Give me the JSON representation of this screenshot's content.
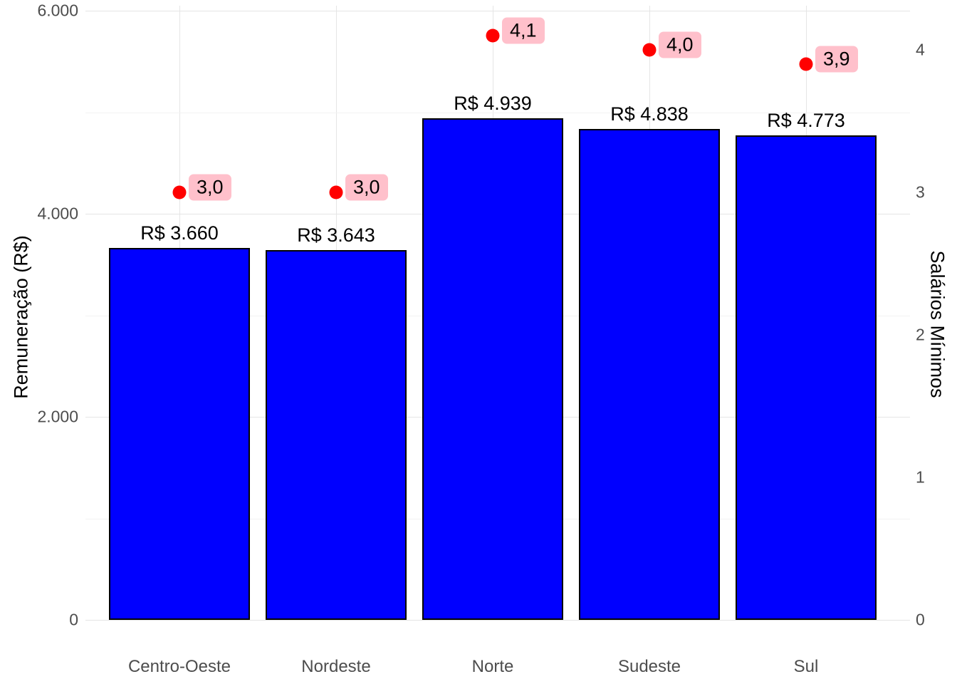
{
  "chart_data": {
    "type": "bar",
    "title": "",
    "categories": [
      "Centro-Oeste",
      "Nordeste",
      "Norte",
      "Sudeste",
      "Sul"
    ],
    "series": [
      {
        "name": "Remuneração (R$)",
        "type": "bar",
        "values": [
          3660,
          3643,
          4939,
          4838,
          4773
        ],
        "labels": [
          "R$ 3.660",
          "R$ 3.643",
          "R$ 4.939",
          "R$ 4.838",
          "R$ 4.773"
        ],
        "color": "#0000FF",
        "border_color": "#000000"
      },
      {
        "name": "Salários Mínimos",
        "type": "scatter",
        "values": [
          3.0,
          3.0,
          4.1,
          4.0,
          3.9
        ],
        "labels": [
          "3,0",
          "3,0",
          "4,1",
          "4,0",
          "3,9"
        ],
        "color": "#FF0000",
        "label_bg": "#FFC0CB"
      }
    ],
    "left_axis": {
      "label": "Remuneração (R$)",
      "ticks": [
        0,
        2000,
        4000,
        6000
      ],
      "tick_labels": [
        "0",
        "2.000",
        "4.000",
        "6.000"
      ],
      "minor_ticks": [
        1000,
        3000,
        5000
      ],
      "range": [
        0,
        6050
      ]
    },
    "right_axis": {
      "label": "Salários Mínimos",
      "ticks": [
        0,
        1,
        2,
        3,
        4
      ],
      "tick_labels": [
        "0",
        "1",
        "2",
        "3",
        "4"
      ],
      "range": [
        0,
        4.31
      ]
    },
    "grid": true,
    "legend": "none",
    "background": "#FFFFFF",
    "grid_major_color": "#E5E5E5",
    "grid_minor_color": "#F2F2F2"
  }
}
